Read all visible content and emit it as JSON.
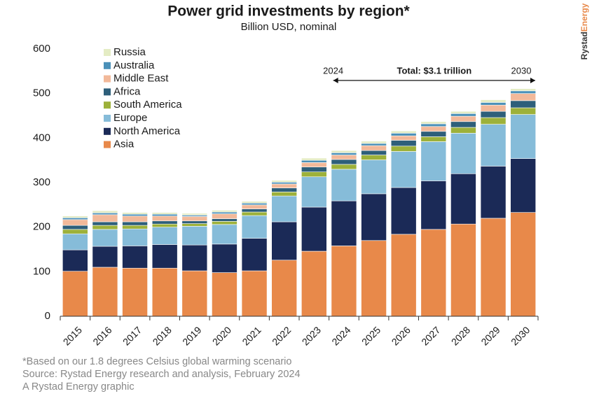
{
  "chart_data": {
    "type": "stacked_bar",
    "title": "Power grid investments by region*",
    "subtitle": "Billion USD, nominal",
    "categories": [
      "2015",
      "2016",
      "2017",
      "2018",
      "2019",
      "2020",
      "2021",
      "2022",
      "2023",
      "2024",
      "2025",
      "2026",
      "2027",
      "2028",
      "2029",
      "2030"
    ],
    "series": [
      {
        "name": "Asia",
        "color": "#e8894a",
        "values": [
          101,
          110,
          108,
          108,
          102,
          98,
          102,
          126,
          146,
          158,
          170,
          184,
          195,
          207,
          220,
          233
        ]
      },
      {
        "name": "North America",
        "color": "#1b2a57",
        "values": [
          48,
          47,
          50,
          53,
          58,
          64,
          73,
          86,
          99,
          101,
          105,
          105,
          109,
          113,
          117,
          121
        ]
      },
      {
        "name": "Europe",
        "color": "#86bcd9",
        "values": [
          36,
          38,
          38,
          39,
          42,
          44,
          51,
          58,
          68,
          71,
          76,
          81,
          88,
          91,
          94,
          99
        ]
      },
      {
        "name": "South America",
        "color": "#9db13a",
        "values": [
          10,
          9,
          8,
          7,
          6,
          7,
          8,
          9,
          11,
          11,
          11,
          12,
          11,
          13,
          15,
          15
        ]
      },
      {
        "name": "Africa",
        "color": "#2e5f7a",
        "values": [
          9,
          8,
          8,
          7,
          6,
          6,
          7,
          9,
          11,
          11,
          10,
          13,
          12,
          13,
          14,
          16
        ]
      },
      {
        "name": "Middle East",
        "color": "#f2b99a",
        "values": [
          13,
          16,
          13,
          11,
          10,
          11,
          9,
          9,
          10,
          10,
          11,
          10,
          11,
          12,
          14,
          16
        ]
      },
      {
        "name": "Australia",
        "color": "#4a90b8",
        "values": [
          4,
          4,
          4,
          4,
          3,
          4,
          4,
          4,
          5,
          5,
          5,
          6,
          6,
          6,
          6,
          6
        ]
      },
      {
        "name": "Russia",
        "color": "#e4ecc4",
        "values": [
          4,
          5,
          4,
          4,
          4,
          4,
          4,
          4,
          5,
          5,
          5,
          5,
          5,
          5,
          6,
          5
        ]
      }
    ],
    "ylim": [
      0,
      600
    ],
    "yticks": [
      0,
      100,
      200,
      300,
      400,
      500,
      600
    ],
    "grid": false,
    "annotation": {
      "start_label": "2024",
      "text": "Total: $3.1 trillion",
      "end_label": "2030"
    },
    "notes": [
      "*Based on our 1.8 degrees Celsius global warming scenario",
      "Source: Rystad Energy research and analysis, February 2024",
      "A Rystad Energy graphic"
    ],
    "brand": [
      "Rystad",
      "Energy"
    ]
  }
}
